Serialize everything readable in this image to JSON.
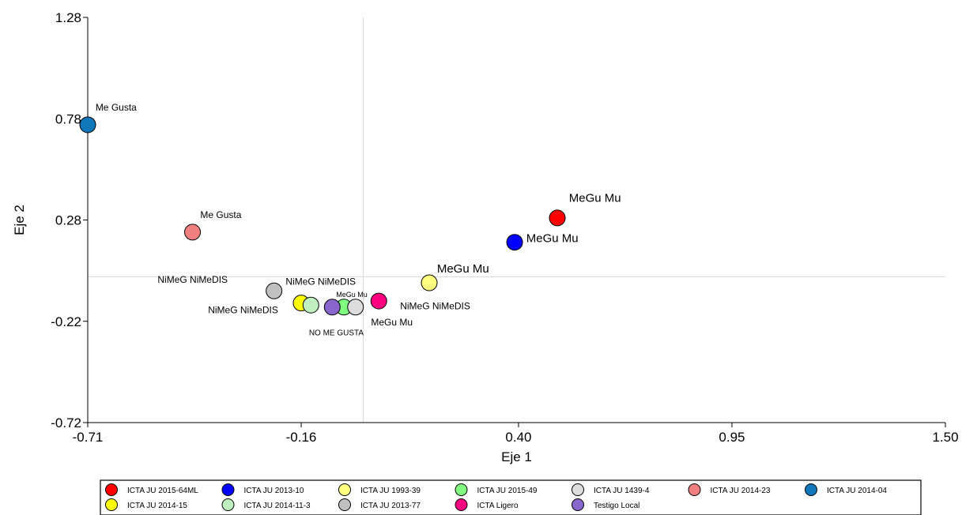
{
  "chart_data": {
    "type": "scatter",
    "xlabel": "Eje 1",
    "ylabel": "Eje 2",
    "xlim": [
      -0.71,
      1.5
    ],
    "ylim": [
      -0.72,
      1.28
    ],
    "x_ticks": [
      -0.71,
      -0.16,
      0.4,
      0.95,
      1.5
    ],
    "x_tick_labels": [
      "-0.71",
      "-0.16",
      "0.40",
      "0.95",
      "1.50"
    ],
    "y_ticks": [
      -0.72,
      -0.22,
      0.28,
      0.78,
      1.28
    ],
    "y_tick_labels": [
      "-0.72",
      "-0.22",
      "0.28",
      "0.78",
      "1.28"
    ],
    "reference_lines": {
      "x": 0,
      "y": 0
    },
    "grid": false,
    "legend_position": "bottom",
    "series": [
      {
        "name": "ICTA JU 2015-64ML",
        "color": "#ff0000",
        "x": 0.5,
        "y": 0.29
      },
      {
        "name": "ICTA JU 2013-10",
        "color": "#0000ff",
        "x": 0.39,
        "y": 0.17
      },
      {
        "name": "ICTA JU 1993-39",
        "color": "#ffff80",
        "x": 0.17,
        "y": -0.03
      },
      {
        "name": "ICTA JU 2015-49",
        "color": "#80ff80",
        "x": -0.05,
        "y": -0.15
      },
      {
        "name": "ICTA JU 1439-4",
        "color": "#dddddd",
        "x": -0.02,
        "y": -0.15
      },
      {
        "name": "ICTA JU 2014-23",
        "color": "#f08080",
        "x": -0.44,
        "y": 0.22
      },
      {
        "name": "ICTA JU 2014-04",
        "color": "#1177bb",
        "x": -0.71,
        "y": 0.75
      },
      {
        "name": "ICTA JU 2014-15",
        "color": "#ffff00",
        "x": -0.16,
        "y": -0.13
      },
      {
        "name": "ICTA JU 2014-11-3",
        "color": "#c0f0c0",
        "x": -0.135,
        "y": -0.14
      },
      {
        "name": "ICTA JU 2013-77",
        "color": "#c0c0c0",
        "x": -0.23,
        "y": -0.07
      },
      {
        "name": "ICTA Ligero",
        "color": "#ff0080",
        "x": 0.04,
        "y": -0.12
      },
      {
        "name": "Testigo Local",
        "color": "#8866cc",
        "x": -0.08,
        "y": -0.15
      }
    ],
    "annotations": [
      {
        "text": "MeGu Mu",
        "x": 0.53,
        "y": 0.37,
        "size": 15
      },
      {
        "text": "MeGu Mu",
        "x": 0.42,
        "y": 0.17,
        "size": 15
      },
      {
        "text": "MeGu Mu",
        "x": 0.19,
        "y": 0.02,
        "size": 15
      },
      {
        "text": "Me Gusta",
        "x": -0.69,
        "y": 0.82,
        "size": 12
      },
      {
        "text": "Me Gusta",
        "x": -0.42,
        "y": 0.29,
        "size": 12
      },
      {
        "text": "NiMeG NiMeDIS",
        "x": -0.53,
        "y": -0.03,
        "size": 12
      },
      {
        "text": "NiMeG NiMeDIS",
        "x": -0.2,
        "y": -0.04,
        "size": 12
      },
      {
        "text": "NiMeG NiMeDIS",
        "x": -0.4,
        "y": -0.18,
        "size": 12
      },
      {
        "text": "MeGu Mu",
        "x": -0.07,
        "y": -0.1,
        "size": 9
      },
      {
        "text": "NiMeG NiMeDIS",
        "x": 0.095,
        "y": -0.16,
        "size": 12
      },
      {
        "text": "MeGu Mu",
        "x": 0.02,
        "y": -0.24,
        "size": 12
      },
      {
        "text": "NO ME GUSTA",
        "x": -0.14,
        "y": -0.29,
        "size": 10
      }
    ],
    "legend_rows": [
      [
        "ICTA JU 2015-64ML",
        "ICTA JU 2013-10",
        "ICTA JU 1993-39",
        "ICTA JU 2015-49",
        "ICTA JU 1439-4",
        "ICTA JU 2014-23",
        "ICTA JU 2014-04"
      ],
      [
        "ICTA JU 2014-15",
        "ICTA JU 2014-11-3",
        "ICTA JU 2013-77",
        "ICTA Ligero",
        "Testigo Local"
      ]
    ]
  }
}
